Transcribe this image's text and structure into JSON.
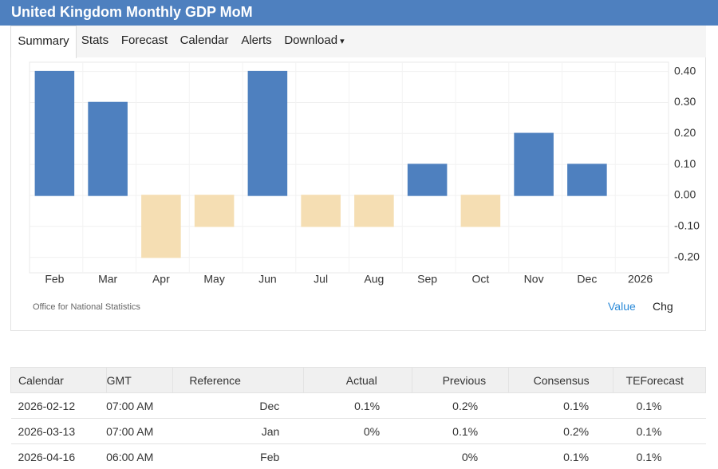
{
  "header": {
    "title": "United Kingdom Monthly GDP MoM"
  },
  "tabs": [
    "Summary",
    "Stats",
    "Forecast",
    "Calendar",
    "Alerts",
    "Download"
  ],
  "chart_data": {
    "type": "bar",
    "categories": [
      "Feb",
      "Mar",
      "Apr",
      "May",
      "Jun",
      "Jul",
      "Aug",
      "Sep",
      "Oct",
      "Nov",
      "Dec",
      "2026"
    ],
    "values": [
      0.4,
      0.3,
      -0.2,
      -0.1,
      0.4,
      -0.1,
      -0.1,
      0.1,
      -0.1,
      0.2,
      0.1,
      0
    ],
    "positive_color": "#4e80bf",
    "negative_color": "#f5deb3",
    "ylim": [
      -0.25,
      0.43
    ],
    "yticks": [
      {
        "value": 0.4,
        "label": "0.40"
      },
      {
        "value": 0.3,
        "label": "0.30"
      },
      {
        "value": 0.2,
        "label": "0.20"
      },
      {
        "value": 0.1,
        "label": "0.10"
      },
      {
        "value": 0,
        "label": "0.00"
      },
      {
        "value": -0.1,
        "label": "-0.10"
      },
      {
        "value": -0.2,
        "label": "-0.20"
      }
    ],
    "grid": true,
    "source": "Office for National Statistics"
  },
  "chart_controls": [
    "Value",
    "Chg"
  ],
  "table": {
    "header": [
      "Calendar",
      "GMT",
      "Reference",
      "Actual",
      "Previous",
      "Consensus",
      "TEForecast"
    ],
    "rows": [
      [
        "2026-02-12",
        "07:00 AM",
        "Dec",
        "0.1%",
        "0.2%",
        "0.1%",
        "0.1%"
      ],
      [
        "2026-03-13",
        "07:00 AM",
        "Jan",
        "0%",
        "0.1%",
        "0.2%",
        "0.1%"
      ],
      [
        "2026-04-16",
        "06:00 AM",
        "Feb",
        null,
        "0%",
        "0.1%",
        "0.1%"
      ]
    ]
  }
}
